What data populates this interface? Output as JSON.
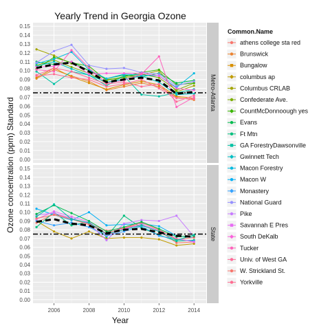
{
  "chart_data": {
    "type": "line",
    "title": "Yearly Trend in Georgia Ozone",
    "xlabel": "Year",
    "ylabel": "Ozone concentration (ppm) Standard",
    "xlim": [
      2004.8,
      2014.7
    ],
    "ylim": [
      -0.004,
      0.154
    ],
    "x_ticks": [
      2006,
      2008,
      2010,
      2012,
      2014
    ],
    "y_ticks": [
      0.0,
      0.01,
      0.02,
      0.03,
      0.04,
      0.05,
      0.06,
      0.07,
      0.08,
      0.09,
      0.1,
      0.11,
      0.12,
      0.13,
      0.14,
      0.15
    ],
    "y_tick_labels": [
      "0.00",
      "0.01",
      "0.02",
      "0.03",
      "0.04",
      "0.05",
      "0.06",
      "0.07",
      "0.08",
      "0.09",
      "0.10",
      "0.11",
      "0.12",
      "0.13",
      "0.14",
      "0.15"
    ],
    "grid": true,
    "legend_position": "right",
    "legend_title": "Common.Name",
    "standard_line": 0.075,
    "x": [
      2005,
      2006,
      2007,
      2008,
      2009,
      2010,
      2011,
      2012,
      2013,
      2014
    ],
    "facets": [
      {
        "label": "Metro-Atlanta",
        "mean": [
          0.103,
          0.107,
          0.109,
          0.099,
          0.087,
          0.09,
          0.092,
          0.089,
          0.074,
          0.076
        ],
        "series": [
          {
            "name": "Brunswick",
            "values": [
              0.091,
              0.101,
              0.094,
              0.088,
              0.078,
              0.082,
              0.086,
              0.082,
              0.07,
              0.067
            ]
          },
          {
            "name": "Bungalow",
            "values": [
              0.092,
              0.103,
              0.093,
              0.086,
              0.079,
              0.084,
              0.088,
              0.084,
              0.071,
              0.069
            ]
          },
          {
            "name": "Columbus CRLAB",
            "values": [
              0.124,
              0.117,
              0.108,
              0.1,
              0.09,
              0.092,
              0.095,
              0.1,
              0.076,
              0.083
            ]
          },
          {
            "name": "Confederate Ave.",
            "values": [
              0.106,
              0.112,
              0.104,
              0.097,
              0.086,
              0.094,
              0.096,
              0.092,
              0.078,
              0.086
            ]
          },
          {
            "name": "CountMcDonnoough yes",
            "values": [
              0.102,
              0.115,
              0.109,
              0.105,
              0.089,
              0.093,
              0.098,
              0.101,
              0.084,
              0.086
            ]
          },
          {
            "name": "Evans",
            "values": [
              0.11,
              0.107,
              0.11,
              0.1,
              0.091,
              0.095,
              0.093,
              0.097,
              0.086,
              0.089
            ]
          },
          {
            "name": "GA ForestryDawsonville",
            "values": [
              0.099,
              0.085,
              0.099,
              0.095,
              0.083,
              0.094,
              0.073,
              0.071,
              0.075,
              0.079
            ]
          },
          {
            "name": "Gwinnett Tech",
            "values": [
              0.105,
              0.11,
              0.102,
              0.095,
              0.087,
              0.09,
              0.094,
              0.087,
              0.073,
              0.074
            ]
          },
          {
            "name": "Macon Forestry",
            "values": [
              0.108,
              0.113,
              0.121,
              0.101,
              0.091,
              0.096,
              0.095,
              0.094,
              0.081,
              0.097
            ]
          },
          {
            "name": "National Guard",
            "values": [
              0.109,
              0.122,
              0.129,
              0.106,
              0.102,
              0.103,
              0.098,
              0.096,
              0.083,
              0.088
            ]
          },
          {
            "name": "South DeKalb",
            "values": [
              0.104,
              0.105,
              0.11,
              0.096,
              0.097,
              0.097,
              0.097,
              0.094,
              0.08,
              0.078
            ]
          },
          {
            "name": "Tucker",
            "values": [
              0.101,
              0.099,
              0.123,
              0.103,
              0.086,
              0.089,
              0.096,
              0.116,
              0.059,
              0.07
            ]
          },
          {
            "name": "Univ. of West GA",
            "values": [
              0.095,
              0.103,
              0.099,
              0.092,
              0.085,
              0.087,
              0.082,
              0.085,
              0.065,
              0.072
            ]
          },
          {
            "name": "Yorkville",
            "values": [
              0.094,
              0.096,
              0.092,
              0.09,
              0.082,
              0.085,
              0.09,
              0.08,
              0.069,
              0.068
            ]
          }
        ]
      },
      {
        "label": "State",
        "mean": [
          0.089,
          0.092,
          0.087,
          0.085,
          0.076,
          0.08,
          0.081,
          0.077,
          0.073,
          0.072
        ],
        "series": [
          {
            "name": "athens college sta red",
            "values": [
              0.088,
              0.098,
              0.093,
              0.087,
              0.079,
              0.082,
              0.086,
              0.079,
              0.065,
              0.066
            ]
          },
          {
            "name": "columbus ap",
            "values": [
              0.09,
              0.078,
              0.07,
              0.078,
              0.07,
              0.071,
              0.071,
              0.069,
              0.062,
              0.064
            ]
          },
          {
            "name": "Ft Mtn",
            "values": [
              0.083,
              0.1,
              0.085,
              0.089,
              0.072,
              0.096,
              0.082,
              0.074,
              0.067,
              0.068
            ]
          },
          {
            "name": "Macon W",
            "values": [
              0.104,
              0.097,
              0.091,
              0.1,
              0.085,
              0.086,
              0.087,
              0.084,
              0.073,
              0.071
            ]
          },
          {
            "name": "Monastery",
            "values": [
              0.09,
              0.085,
              0.088,
              0.083,
              0.073,
              0.078,
              0.084,
              0.073,
              0.069,
              0.067
            ]
          },
          {
            "name": "Pike",
            "values": [
              0.097,
              0.099,
              0.093,
              0.087,
              0.068,
              0.087,
              0.091,
              0.09,
              0.096,
              0.072
            ]
          },
          {
            "name": "Savannah E Pres",
            "values": [
              0.092,
              0.101,
              0.095,
              0.089,
              0.074,
              0.081,
              0.086,
              0.079,
              0.07,
              0.066
            ]
          },
          {
            "name": "W. Strickland St.",
            "values": [
              0.093,
              0.097,
              0.092,
              0.086,
              0.076,
              0.082,
              0.088,
              0.08,
              0.069,
              0.071
            ]
          },
          {
            "name": "Evans",
            "values": [
              0.098,
              0.108,
              0.099,
              0.09,
              0.078,
              0.083,
              0.089,
              0.081,
              0.072,
              0.073
            ]
          },
          {
            "name": "GA ForestryDawsonville",
            "values": [
              0.095,
              0.109,
              0.092,
              0.088,
              0.075,
              0.08,
              0.085,
              0.078,
              0.068,
              0.074
            ]
          }
        ]
      }
    ],
    "legend": [
      {
        "name": "athens college sta red",
        "color": "#F8766D",
        "marker": "circle"
      },
      {
        "name": "Brunswick",
        "color": "#EA8331",
        "marker": "circle"
      },
      {
        "name": "Bungalow",
        "color": "#D89000",
        "marker": "square"
      },
      {
        "name": "columbus ap",
        "color": "#C09B00",
        "marker": "diamond"
      },
      {
        "name": "Columbus CRLAB",
        "color": "#A3A500",
        "marker": "circle"
      },
      {
        "name": "Confederate Ave.",
        "color": "#7CAE00",
        "marker": "circle"
      },
      {
        "name": "CountMcDonnoough yes",
        "color": "#39B600",
        "marker": "diamond"
      },
      {
        "name": "Evans",
        "color": "#00BB4E",
        "marker": "circle"
      },
      {
        "name": "Ft Mtn",
        "color": "#00BF7D",
        "marker": "circle"
      },
      {
        "name": "GA ForestryDawsonville",
        "color": "#00C1A3",
        "marker": "square"
      },
      {
        "name": "Gwinnett Tech",
        "color": "#00BFC4",
        "marker": "diamond"
      },
      {
        "name": "Macon Forestry",
        "color": "#00BAE0",
        "marker": "circle"
      },
      {
        "name": "Macon W",
        "color": "#00B0F6",
        "marker": "circle"
      },
      {
        "name": "Monastery",
        "color": "#35A2FF",
        "marker": "diamond"
      },
      {
        "name": "National Guard",
        "color": "#9590FF",
        "marker": "circle"
      },
      {
        "name": "Pike",
        "color": "#C77CFF",
        "marker": "circle"
      },
      {
        "name": "Savannah E Pres",
        "color": "#E76BF3",
        "marker": "square"
      },
      {
        "name": "South DeKalb",
        "color": "#FA62DB",
        "marker": "diamond"
      },
      {
        "name": "Tucker",
        "color": "#FF62BC",
        "marker": "circle"
      },
      {
        "name": "Univ. of West GA",
        "color": "#FF6A98",
        "marker": "circle"
      },
      {
        "name": "W. Strickland St.",
        "color": "#F8766D",
        "marker": "circle"
      },
      {
        "name": "Yorkville",
        "color": "#FF6C91",
        "marker": "circle"
      }
    ],
    "colors": {
      "panel_background": "#ebebeb",
      "grid_major": "#ffffff",
      "strip_background": "#cccccc",
      "mean_line": "#000000"
    }
  }
}
